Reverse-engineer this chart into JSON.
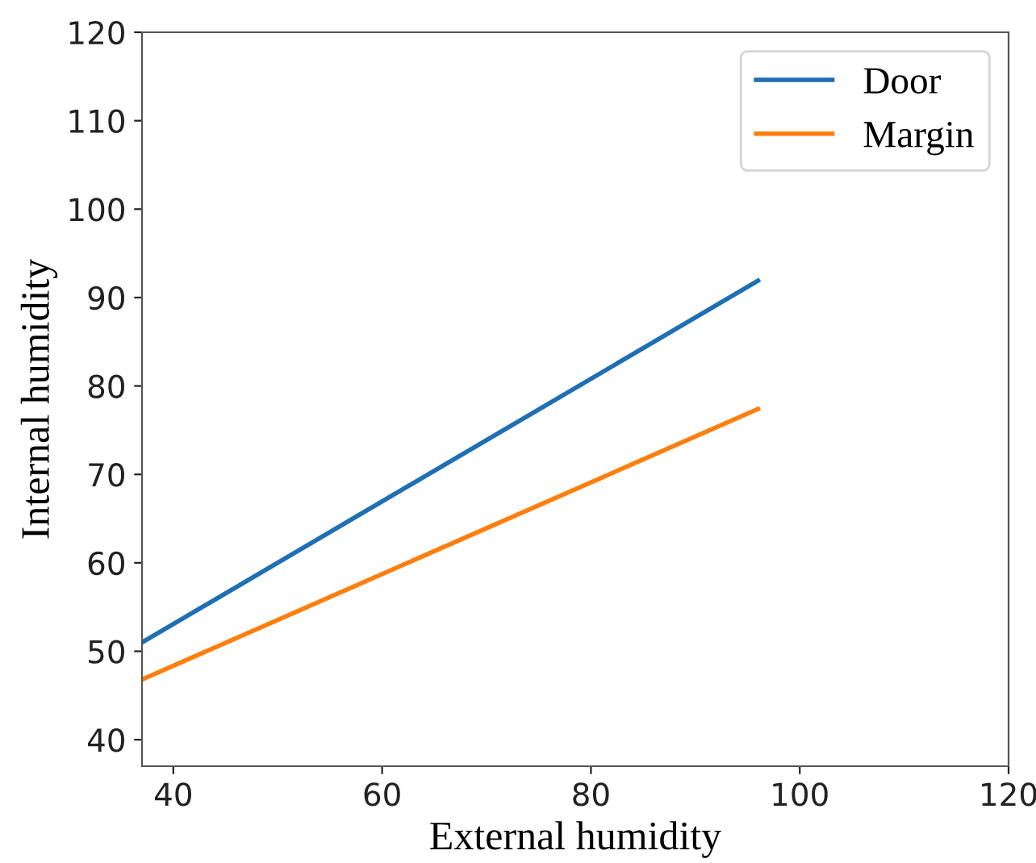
{
  "chart_data": {
    "type": "line",
    "xlabel": "External humidity",
    "ylabel": "Internal humidity",
    "x": [
      37,
      96
    ],
    "series": [
      {
        "name": "Door",
        "color": "#1f6fb4",
        "values": [
          51.0,
          91.9
        ]
      },
      {
        "name": "Margin",
        "color": "#ff7f0e",
        "values": [
          46.8,
          77.4
        ]
      }
    ],
    "xlim": [
      37,
      120
    ],
    "xticks": [
      40,
      60,
      80,
      100,
      120
    ],
    "ylim": [
      37,
      120
    ],
    "yticks": [
      40,
      50,
      60,
      70,
      80,
      90,
      100,
      110,
      120
    ],
    "grid": false,
    "legend": "top right",
    "marker": "none",
    "line_style": "solid"
  }
}
